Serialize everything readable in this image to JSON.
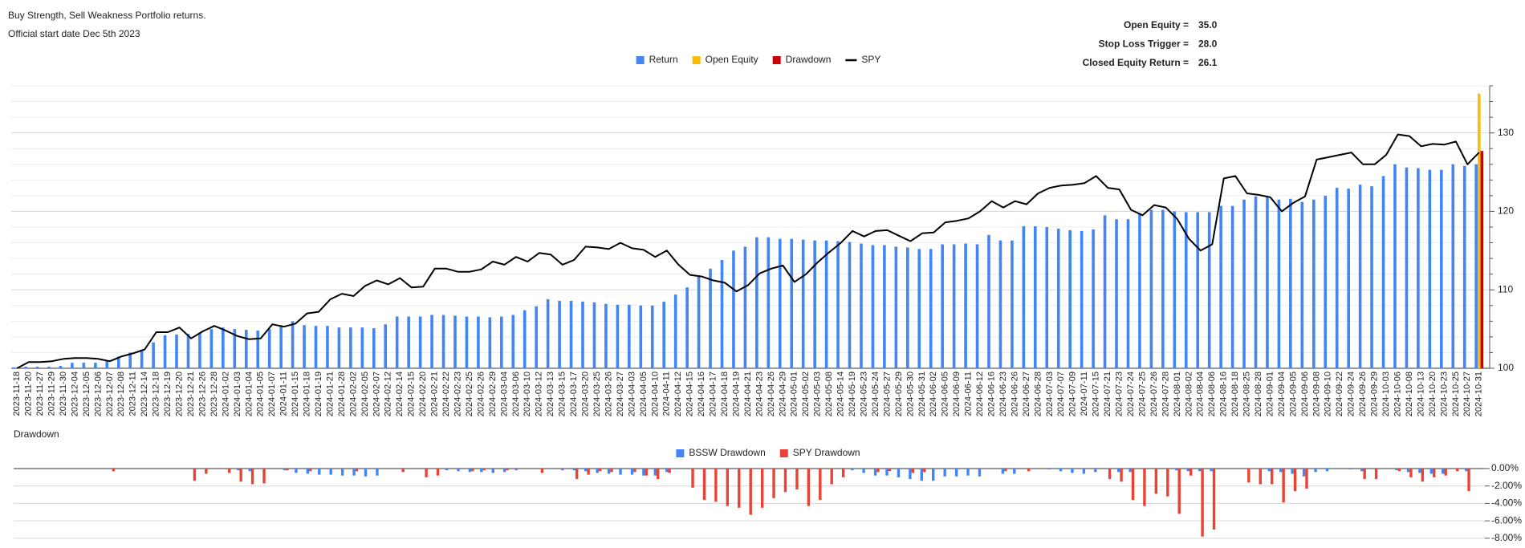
{
  "chart_data": [
    {
      "type": "combo",
      "title": "Buy Strength, Sell Weakness Portfolio returns.",
      "subtitle": "Official start date Dec 5th 2023",
      "stats": [
        {
          "label": "Open Equity =",
          "value": "35.0"
        },
        {
          "label": "Stop Loss Trigger =",
          "value": "28.0"
        },
        {
          "label": "Closed Equity Return =",
          "value": "26.1"
        }
      ],
      "categories": [
        "2023-11-18",
        "2023-11-20",
        "2023-11-27",
        "2023-11-29",
        "2023-11-30",
        "2023-12-04",
        "2023-12-05",
        "2023-12-06",
        "2023-12-07",
        "2023-12-08",
        "2023-12-11",
        "2023-12-14",
        "2023-12-18",
        "2023-12-19",
        "2023-12-20",
        "2023-12-21",
        "2023-12-26",
        "2023-12-28",
        "2024-01-02",
        "2024-01-03",
        "2024-01-04",
        "2024-01-05",
        "2024-01-07",
        "2024-01-11",
        "2024-01-15",
        "2024-01-18",
        "2024-01-19",
        "2024-01-21",
        "2024-01-28",
        "2024-02-02",
        "2024-02-05",
        "2024-02-07",
        "2024-02-12",
        "2024-02-14",
        "2024-02-15",
        "2024-02-20",
        "2024-02-21",
        "2024-02-22",
        "2024-02-23",
        "2024-02-25",
        "2024-02-26",
        "2024-02-29",
        "2024-03-04",
        "2024-03-06",
        "2024-03-10",
        "2024-03-12",
        "2024-03-13",
        "2024-03-15",
        "2024-03-17",
        "2024-03-20",
        "2024-03-25",
        "2024-03-26",
        "2024-03-27",
        "2024-04-03",
        "2024-04-05",
        "2024-04-10",
        "2024-04-11",
        "2024-04-12",
        "2024-04-15",
        "2024-04-16",
        "2024-04-17",
        "2024-04-18",
        "2024-04-19",
        "2024-04-21",
        "2024-04-23",
        "2024-04-26",
        "2024-04-29",
        "2024-05-01",
        "2024-05-02",
        "2024-05-03",
        "2024-05-08",
        "2024-05-14",
        "2024-05-19",
        "2024-05-23",
        "2024-05-24",
        "2024-05-27",
        "2024-05-29",
        "2024-05-30",
        "2024-05-31",
        "2024-06-02",
        "2024-06-05",
        "2024-06-09",
        "2024-06-11",
        "2024-06-12",
        "2024-06-16",
        "2024-06-23",
        "2024-06-26",
        "2024-06-27",
        "2024-06-28",
        "2024-07-03",
        "2024-07-07",
        "2024-07-09",
        "2024-07-11",
        "2024-07-15",
        "2024-07-21",
        "2024-07-23",
        "2024-07-24",
        "2024-07-25",
        "2024-07-26",
        "2024-07-28",
        "2024-08-01",
        "2024-08-02",
        "2024-08-04",
        "2024-08-06",
        "2024-08-16",
        "2024-08-18",
        "2024-08-25",
        "2024-08-28",
        "2024-09-01",
        "2024-09-04",
        "2024-09-05",
        "2024-09-06",
        "2024-09-08",
        "2024-09-10",
        "2024-09-22",
        "2024-09-24",
        "2024-09-26",
        "2024-09-29",
        "2024-10-03",
        "2024-10-06",
        "2024-10-08",
        "2024-10-13",
        "2024-10-20",
        "2024-10-23",
        "2024-10-25",
        "2024-10-27",
        "2024-10-31"
      ],
      "series": [
        {
          "name": "Return",
          "type": "bar",
          "color": "#4285f4",
          "values": [
            100.1,
            100.2,
            100.2,
            100.2,
            100.3,
            100.7,
            100.7,
            100.7,
            101,
            101.5,
            102,
            102.3,
            103.3,
            104.2,
            104.3,
            104.4,
            104.5,
            105,
            105.2,
            105,
            104.9,
            104.8,
            105,
            105.5,
            106,
            105.5,
            105.4,
            105.4,
            105.2,
            105.2,
            105.2,
            105.1,
            105.6,
            106.6,
            106.6,
            106.6,
            106.8,
            106.8,
            106.7,
            106.6,
            106.6,
            106.5,
            106.6,
            106.8,
            107.4,
            107.9,
            108.8,
            108.6,
            108.6,
            108.5,
            108.4,
            108.2,
            108.1,
            108.1,
            108,
            108,
            108.5,
            109.4,
            110.3,
            111.8,
            112.7,
            113.8,
            115,
            115.5,
            116.7,
            116.7,
            116.5,
            116.5,
            116.4,
            116.3,
            116.3,
            116.2,
            116.1,
            115.9,
            115.7,
            115.7,
            115.5,
            115.4,
            115.2,
            115.2,
            115.8,
            115.8,
            115.9,
            115.8,
            117,
            116.3,
            116.3,
            118.1,
            118.1,
            118,
            117.8,
            117.6,
            117.5,
            117.7,
            119.5,
            119,
            119,
            119.8,
            120.2,
            120.2,
            120,
            119.9,
            119.9,
            119.9,
            120.7,
            120.7,
            121.5,
            121.9,
            121.9,
            121.5,
            121.6,
            121.2,
            121.5,
            122,
            123,
            122.9,
            123.4,
            123.2,
            124.5,
            126,
            125.6,
            125.5,
            125.3,
            125.3,
            126,
            125.8,
            126
          ]
        },
        {
          "name": "Open Equity",
          "type": "bar",
          "color": "#fbbc04",
          "values": [
            null,
            null,
            null,
            null,
            null,
            null,
            null,
            null,
            null,
            null,
            null,
            null,
            null,
            null,
            null,
            null,
            null,
            null,
            null,
            null,
            null,
            null,
            null,
            null,
            null,
            null,
            null,
            null,
            null,
            null,
            null,
            null,
            null,
            null,
            null,
            null,
            null,
            null,
            null,
            null,
            null,
            null,
            null,
            null,
            null,
            null,
            null,
            null,
            null,
            null,
            null,
            null,
            null,
            null,
            null,
            null,
            null,
            null,
            null,
            null,
            null,
            null,
            null,
            null,
            null,
            null,
            null,
            null,
            null,
            null,
            null,
            null,
            null,
            null,
            null,
            null,
            null,
            null,
            null,
            null,
            null,
            null,
            null,
            null,
            null,
            null,
            null,
            null,
            null,
            null,
            null,
            null,
            null,
            null,
            null,
            null,
            null,
            null,
            null,
            null,
            null,
            null,
            null,
            null,
            null,
            null,
            null,
            null,
            null,
            null,
            null,
            null,
            null,
            null,
            null,
            null,
            null,
            null,
            null,
            null,
            null,
            null,
            null,
            null,
            null,
            null,
            135
          ]
        },
        {
          "name": "Drawdown",
          "type": "bar",
          "color": "#cc0000",
          "values": [
            null,
            null,
            null,
            null,
            null,
            null,
            null,
            null,
            null,
            null,
            null,
            null,
            null,
            null,
            null,
            null,
            null,
            null,
            null,
            null,
            null,
            null,
            null,
            null,
            null,
            null,
            null,
            null,
            null,
            null,
            null,
            null,
            null,
            null,
            null,
            null,
            null,
            null,
            null,
            null,
            null,
            null,
            null,
            null,
            null,
            null,
            null,
            null,
            null,
            null,
            null,
            null,
            null,
            null,
            null,
            null,
            null,
            null,
            null,
            null,
            null,
            null,
            null,
            null,
            null,
            null,
            null,
            null,
            null,
            null,
            null,
            null,
            null,
            null,
            null,
            null,
            null,
            null,
            null,
            null,
            null,
            null,
            null,
            null,
            null,
            null,
            null,
            null,
            null,
            null,
            null,
            null,
            null,
            null,
            null,
            null,
            null,
            null,
            null,
            null,
            null,
            null,
            null,
            null,
            null,
            null,
            null,
            null,
            null,
            null,
            null,
            null,
            null,
            null,
            null,
            null,
            null,
            null,
            null,
            null,
            null,
            null,
            null,
            null,
            null,
            null,
            127.7
          ]
        },
        {
          "name": "SPY",
          "type": "line",
          "color": "#000000",
          "values": [
            100,
            100.8,
            100.8,
            100.9,
            101.2,
            101.3,
            101.3,
            101.2,
            100.9,
            101.5,
            101.9,
            102.4,
            104.6,
            104.6,
            105.2,
            103.8,
            104.7,
            105.4,
            104.8,
            104.1,
            103.7,
            103.8,
            105.6,
            105.3,
            105.7,
            107,
            107.2,
            108.8,
            109.5,
            109.2,
            110.5,
            111.2,
            110.7,
            111.5,
            110.3,
            110.4,
            112.7,
            112.7,
            112.3,
            112.3,
            112.6,
            113.6,
            113.2,
            114.2,
            113.6,
            114.7,
            114.5,
            113.2,
            113.8,
            115.5,
            115.4,
            115.2,
            116,
            115.3,
            115.1,
            114.2,
            115,
            113.2,
            111.9,
            111.7,
            111.2,
            110.9,
            109.8,
            110.6,
            112.1,
            112.7,
            113.1,
            111,
            112,
            113.5,
            114.8,
            116,
            117.5,
            116.8,
            117.5,
            117.6,
            116.9,
            116.2,
            117.2,
            117.3,
            118.6,
            118.8,
            119.1,
            120,
            121.3,
            120.5,
            121.3,
            120.9,
            122.3,
            123,
            123.3,
            123.4,
            123.6,
            124.5,
            123,
            122.8,
            120.2,
            119.5,
            120.8,
            120.5,
            119,
            116.5,
            115,
            115.8,
            124.2,
            124.5,
            122.3,
            122.1,
            121.8,
            120,
            121.1,
            121.9,
            126.6,
            126.9,
            127.2,
            127.5,
            126,
            126,
            127.2,
            129.8,
            129.6,
            128.3,
            128.6,
            128.5,
            128.9,
            126,
            127.5
          ]
        }
      ],
      "ylim": [
        100,
        136
      ],
      "yticks": [
        100,
        110,
        120,
        130
      ],
      "minor_yticks": [
        102,
        104,
        106,
        108,
        112,
        114,
        116,
        118,
        122,
        124,
        126,
        128,
        132,
        134,
        136
      ],
      "grid": true,
      "legend": "top"
    },
    {
      "type": "bar",
      "title": "Drawdown",
      "series": [
        {
          "name": "BSSW Drawdown",
          "color": "#4285f4",
          "values": [
            0,
            0,
            0,
            0,
            0,
            0,
            0,
            0,
            0,
            0,
            0,
            0,
            0,
            0,
            0,
            0,
            0,
            0,
            0,
            -0.2,
            -0.3,
            0,
            0,
            -0.2,
            -0.5,
            -0.6,
            -0.7,
            -0.7,
            -0.8,
            -0.8,
            -0.9,
            -0.8,
            0,
            0,
            0,
            0,
            0,
            -0.2,
            -0.3,
            -0.4,
            -0.4,
            -0.5,
            -0.4,
            -0.2,
            0,
            0,
            0,
            -0.2,
            -0.2,
            -0.3,
            -0.5,
            -0.6,
            -0.7,
            -0.7,
            -0.8,
            -0.8,
            -0.4,
            0,
            0,
            0,
            0,
            0,
            0,
            0,
            0,
            0,
            0,
            0,
            0,
            0,
            0,
            0,
            -0.2,
            -0.5,
            -0.8,
            -0.8,
            -1.0,
            -1.2,
            -1.4,
            -1.4,
            -0.9,
            -0.9,
            -0.8,
            -0.9,
            0,
            -0.6,
            -0.6,
            0,
            0,
            -0.1,
            -0.3,
            -0.5,
            -0.6,
            -0.4,
            0,
            -0.4,
            -0.4,
            0,
            0,
            0,
            -0.2,
            -0.3,
            -0.3,
            -0.3,
            0,
            0,
            0,
            0,
            -0.3,
            -0.4,
            -0.6,
            -0.9,
            -0.4,
            -0.3,
            0,
            -0.1,
            -0.3,
            0,
            0,
            -0.2,
            -0.4,
            -0.5,
            -0.6,
            -0.6,
            0,
            -0.3,
            0
          ]
        },
        {
          "name": "SPY Drawdown",
          "color": "#ea4335",
          "values": [
            0,
            0,
            0,
            0,
            0,
            0,
            0,
            0,
            -0.3,
            0,
            0,
            0,
            0,
            0,
            0,
            -1.4,
            -0.6,
            0,
            -0.5,
            -1.5,
            -1.8,
            -1.7,
            0,
            -0.2,
            0,
            -0.3,
            0,
            0,
            0,
            -0.3,
            0,
            0,
            0,
            -0.4,
            0,
            -1.0,
            -0.8,
            0,
            0,
            -0.3,
            -0.2,
            0,
            -0.2,
            0,
            0,
            -0.5,
            0,
            0,
            -1.2,
            -0.7,
            -0.3,
            -0.4,
            0,
            -0.4,
            -0.8,
            -1.2,
            -0.5,
            0,
            -2.2,
            -3.6,
            -3.8,
            -4.3,
            -4.5,
            -5.3,
            -4.5,
            -3.4,
            -2.7,
            -2.4,
            -4.3,
            -3.6,
            -1.8,
            -1.0,
            0,
            0,
            -0.4,
            -0.3,
            0,
            -0.5,
            -0.4,
            0,
            0,
            0,
            0,
            0,
            0,
            -0.3,
            0,
            -0.3,
            0,
            0,
            0,
            0,
            0,
            0,
            -1.2,
            -1.5,
            -3.6,
            -4.3,
            -2.9,
            -3.2,
            -5.2,
            -0.8,
            -7.8,
            -7.0,
            0,
            0,
            -1.6,
            -1.8,
            -1.8,
            -3.9,
            -2.6,
            -2.3,
            0,
            0,
            0,
            0,
            -1.2,
            -1.2,
            0,
            -0.3,
            -1.0,
            -1.5,
            -1.0,
            -0.8,
            -0.3,
            -2.6,
            0
          ]
        }
      ],
      "ylim": [
        -8.2,
        0
      ],
      "yticks": [
        {
          "value": 0,
          "label": "0.00%"
        },
        {
          "value": -2,
          "label": "-2.00%"
        },
        {
          "value": -4,
          "label": "-4.00%"
        },
        {
          "value": -6,
          "label": "-6.00%"
        },
        {
          "value": -8,
          "label": "-8.00%"
        }
      ],
      "grid": true,
      "legend": "top"
    }
  ]
}
